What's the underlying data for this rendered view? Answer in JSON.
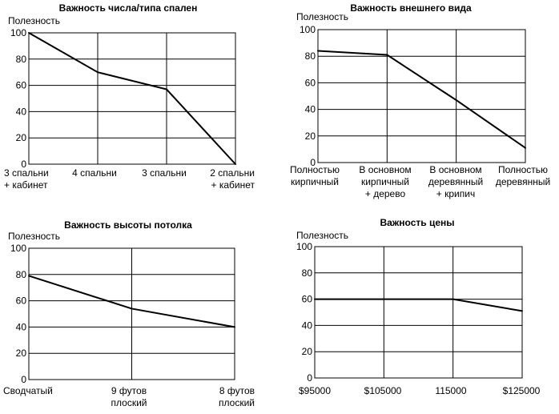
{
  "chart_data": [
    {
      "type": "line",
      "title": "Важность числа/типа спален",
      "ylabel": "Полезность",
      "ylim": [
        0,
        100
      ],
      "yticks": [
        0,
        20,
        40,
        60,
        80,
        100
      ],
      "categories": [
        [
          "3 спальни",
          "+ кабинет"
        ],
        [
          "4 спальни"
        ],
        [
          "3 спальни"
        ],
        [
          "2 спальни",
          "+ кабинет"
        ]
      ],
      "values": [
        100,
        70,
        57,
        0
      ],
      "grid": true
    },
    {
      "type": "line",
      "title": "Важность внешнего вида",
      "ylabel": "Полезность",
      "ylim": [
        0,
        100
      ],
      "yticks": [
        0,
        20,
        40,
        60,
        80,
        100
      ],
      "categories": [
        [
          "Полностью",
          "кирпичный"
        ],
        [
          "В основном",
          "кирпичный",
          "+ дерево"
        ],
        [
          "В основном",
          "деревянный",
          "+ крипич"
        ],
        [
          "Полностью",
          "деревянный"
        ]
      ],
      "values": [
        84,
        81,
        47,
        11
      ],
      "grid": true
    },
    {
      "type": "line",
      "title": "Важность высоты потолка",
      "ylabel": "Полезность",
      "ylim": [
        0,
        100
      ],
      "yticks": [
        0,
        20,
        40,
        60,
        80,
        100
      ],
      "categories": [
        [
          "Сводчатый"
        ],
        [
          "9 футов",
          "плоский"
        ],
        [
          "8 футов",
          "плоский"
        ]
      ],
      "values": [
        79,
        54,
        40
      ],
      "grid": true
    },
    {
      "type": "line",
      "title": "Важность цены",
      "ylabel": "Полезность",
      "ylim": [
        0,
        100
      ],
      "yticks": [
        0,
        20,
        40,
        60,
        80,
        100
      ],
      "categories": [
        [
          "$95000"
        ],
        [
          "$105000"
        ],
        [
          "115000"
        ],
        [
          "$125000"
        ]
      ],
      "values": [
        60,
        60,
        60,
        51
      ],
      "grid": true
    }
  ]
}
